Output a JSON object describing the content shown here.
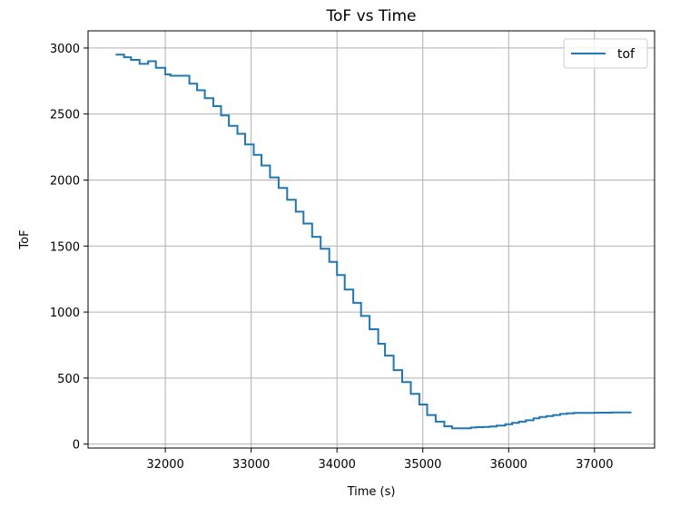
{
  "chart_data": {
    "type": "line",
    "title": "ToF vs Time",
    "xlabel": "Time (s)",
    "ylabel": "ToF",
    "xlim": [
      31100,
      37700
    ],
    "ylim": [
      -30,
      3130
    ],
    "xticks": [
      32000,
      33000,
      34000,
      35000,
      36000,
      37000
    ],
    "yticks": [
      0,
      500,
      1000,
      1500,
      2000,
      2500,
      3000
    ],
    "grid": true,
    "legend_position": "top-right",
    "colors": {
      "line": "#1f77b4",
      "grid": "#b0b0b0",
      "axes": "#000000"
    },
    "series": [
      {
        "name": "tof",
        "x": [
          31420,
          31520,
          31520,
          31600,
          31600,
          31700,
          31700,
          31800,
          31800,
          31890,
          31890,
          32000,
          32000,
          32060,
          32060,
          32280,
          32280,
          32370,
          32370,
          32460,
          32460,
          32560,
          32560,
          32650,
          32650,
          32740,
          32740,
          32840,
          32840,
          32930,
          32930,
          33030,
          33030,
          33120,
          33120,
          33220,
          33220,
          33320,
          33320,
          33420,
          33420,
          33520,
          33520,
          33610,
          33610,
          33710,
          33710,
          33810,
          33810,
          33910,
          33910,
          34000,
          34000,
          34090,
          34090,
          34190,
          34190,
          34280,
          34280,
          34380,
          34380,
          34480,
          34480,
          34560,
          34560,
          34660,
          34660,
          34760,
          34760,
          34860,
          34860,
          34960,
          34960,
          35050,
          35050,
          35150,
          35150,
          35250,
          35250,
          35340,
          35340,
          35440,
          35440,
          35560,
          35560,
          35620,
          35620,
          35700,
          35700,
          35780,
          35780,
          35860,
          35860,
          35960,
          35960,
          36040,
          36040,
          36120,
          36120,
          36200,
          36200,
          36290,
          36290,
          36360,
          36360,
          36440,
          36440,
          36520,
          36520,
          36600,
          36600,
          36680,
          36680,
          36760,
          36760,
          36850,
          36850,
          37000,
          37000,
          37200,
          37200,
          37430
        ],
        "y": [
          2950,
          2950,
          2930,
          2930,
          2910,
          2910,
          2880,
          2880,
          2900,
          2900,
          2850,
          2850,
          2800,
          2800,
          2790,
          2790,
          2730,
          2730,
          2680,
          2680,
          2620,
          2620,
          2560,
          2560,
          2490,
          2490,
          2410,
          2410,
          2350,
          2350,
          2270,
          2270,
          2190,
          2190,
          2110,
          2110,
          2020,
          2020,
          1940,
          1940,
          1850,
          1850,
          1760,
          1760,
          1670,
          1670,
          1570,
          1570,
          1480,
          1480,
          1380,
          1380,
          1280,
          1280,
          1170,
          1170,
          1070,
          1070,
          970,
          970,
          870,
          870,
          760,
          760,
          670,
          670,
          560,
          560,
          470,
          470,
          380,
          380,
          300,
          300,
          220,
          220,
          170,
          170,
          135,
          135,
          120,
          120,
          120,
          120,
          125,
          125,
          128,
          128,
          130,
          130,
          133,
          133,
          140,
          140,
          150,
          150,
          160,
          160,
          170,
          170,
          180,
          180,
          195,
          195,
          205,
          205,
          212,
          212,
          220,
          220,
          228,
          228,
          233,
          233,
          236,
          236,
          236,
          236,
          238,
          238,
          240,
          240
        ]
      }
    ]
  }
}
